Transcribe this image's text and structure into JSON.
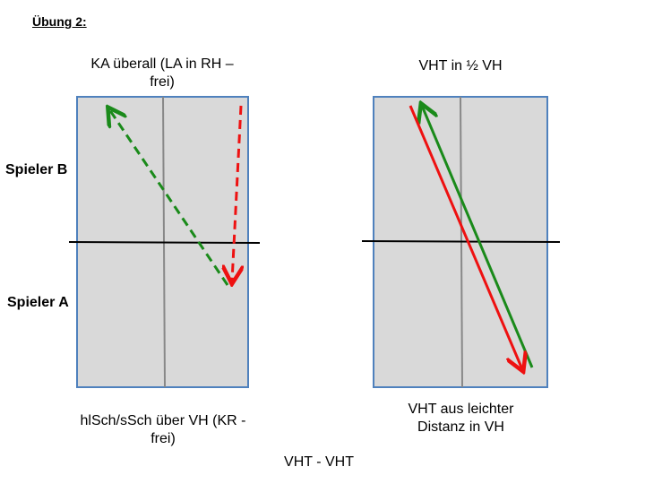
{
  "header": {
    "title": "Übung 2:"
  },
  "players": {
    "top": "Spieler B",
    "bottom": "Spieler A"
  },
  "left_table": {
    "top_label": "KA überall (LA in RH – frei)",
    "bottom_label": "hlSch/sSch über VH (KR - frei)"
  },
  "right_table": {
    "top_label": "VHT in ½ VH",
    "bottom_label": "VHT aus leichter Distanz in VH"
  },
  "footer": {
    "caption": "VHT - VHT"
  }
}
